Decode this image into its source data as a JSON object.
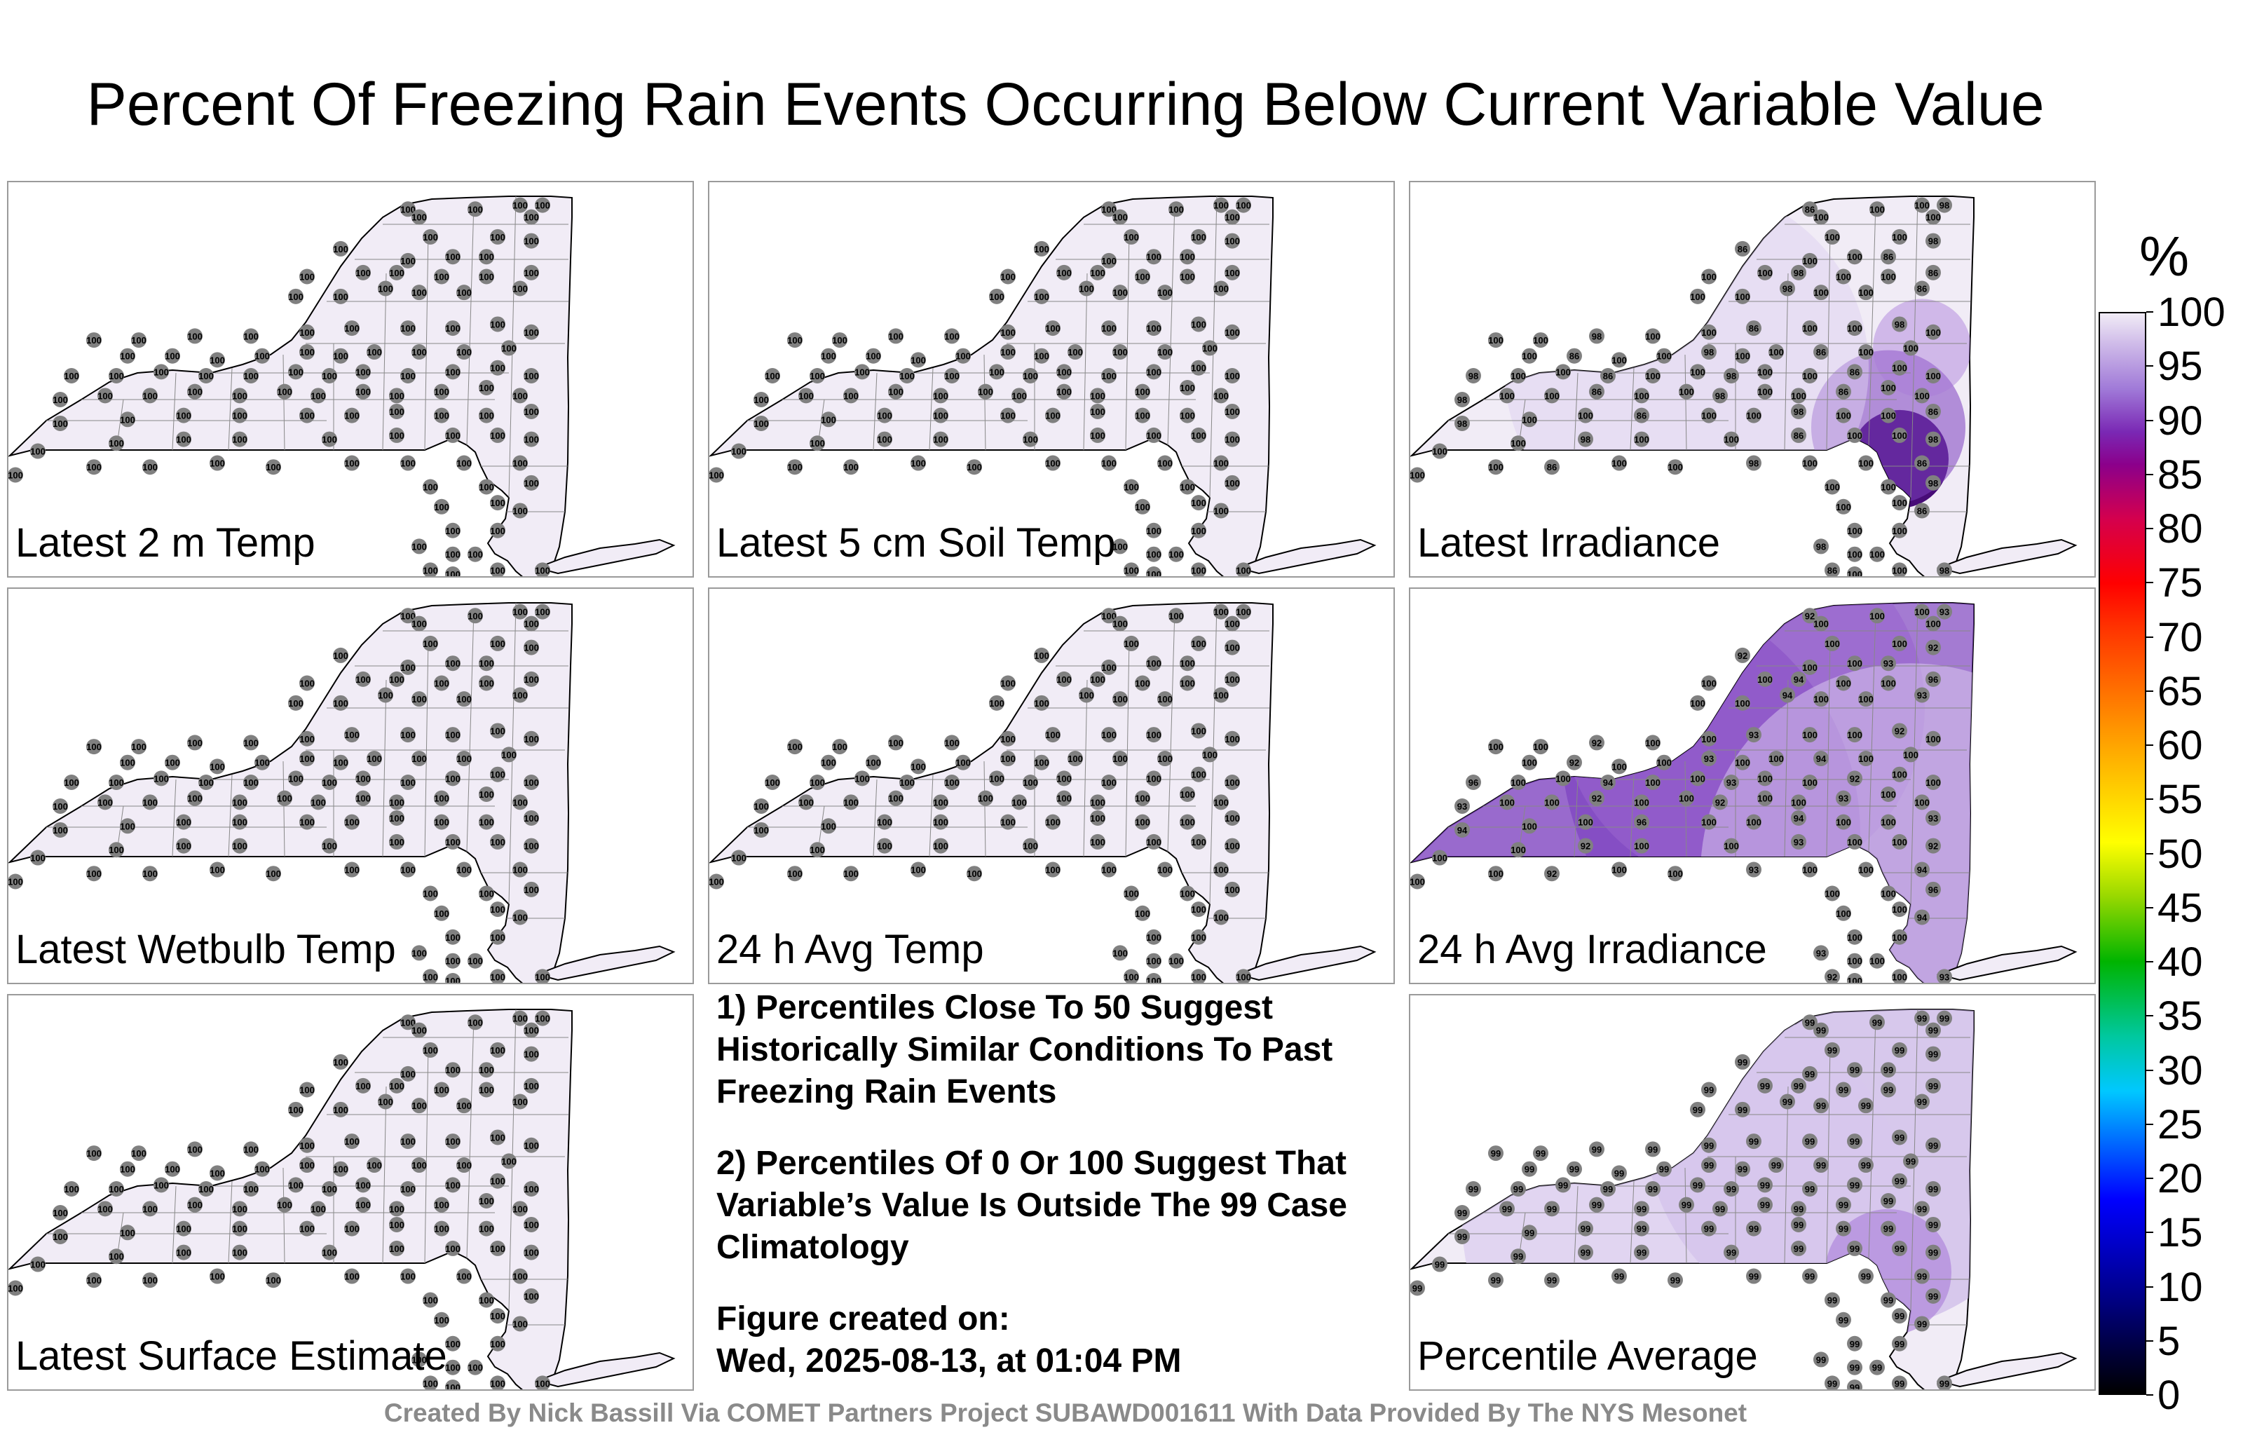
{
  "title": "Percent Of Freezing Rain Events Occurring Below Current Variable Value",
  "panels": [
    {
      "label": "Latest 2 m Temp",
      "values": []
    },
    {
      "label": "Latest 5 cm Soil Temp",
      "values": []
    },
    {
      "label": "Latest Irradiance",
      "values": [
        "86",
        "82",
        "91",
        "98",
        "99",
        "86"
      ]
    },
    {
      "label": "Latest Wetbulb Temp",
      "values": []
    },
    {
      "label": "24 h Avg Temp",
      "values": []
    },
    {
      "label": "24 h Avg Irradiance",
      "values": [
        "92",
        "92",
        "92",
        "93",
        "97",
        "94",
        "92",
        "93",
        "95",
        "92",
        "94",
        "92",
        "93",
        "98",
        "93",
        "94",
        "99",
        "95",
        "96",
        "97",
        "95",
        "94",
        "98",
        "92",
        "93",
        "92",
        "95"
      ]
    },
    {
      "label": "Percentile Average",
      "values": [
        "99",
        "97",
        "98"
      ]
    }
  ],
  "notes": {
    "note1": "1) Percentiles Close To 50 Suggest Historically Similar Conditions To Past Freezing Rain Events",
    "note2": "2) Percentiles Of 0 Or 100 Suggest That Variable’s Value Is Outside The 99 Case Climatology",
    "created_label": "Figure created on:",
    "created_value": "Wed, 2025-08-13, at 01:04 PM"
  },
  "colorbar": {
    "unit": "%",
    "ticks": [
      "100",
      "95",
      "90",
      "85",
      "80",
      "75",
      "70",
      "65",
      "60",
      "55",
      "50",
      "45",
      "40",
      "35",
      "30",
      "25",
      "20",
      "15",
      "10",
      "5",
      "0"
    ],
    "min": 0,
    "max": 100
  },
  "colors": {
    "map_fill": "#f1ecf6",
    "marker": "#808080",
    "high_purple": "#7b3fbf",
    "dark_purple": "#3d0070"
  },
  "credit": "Created By Nick Bassill Via COMET Partners Project SUBAWD001611 With Data Provided By The NYS Mesonet"
}
